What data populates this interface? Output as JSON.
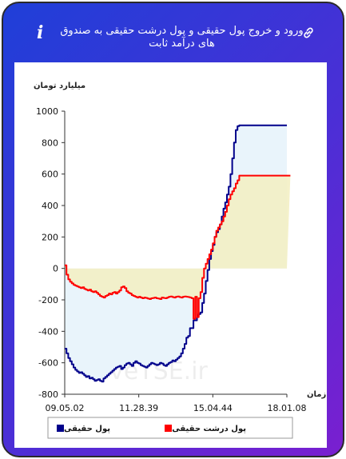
{
  "header": {
    "title": "ورود و خروج پول حقیقی و پول درشت حقیقی به صندوق های درآمد ثابت",
    "info_icon": "info-icon",
    "link_icon": "link-icon"
  },
  "chart_data": {
    "type": "line",
    "ylabel": "میلیارد تومان",
    "xlabel": "زمان",
    "ylim": [
      -800,
      1000
    ],
    "yticks": [
      1000,
      800,
      600,
      400,
      200,
      0,
      -200,
      -400,
      -600,
      -800
    ],
    "xticks": [
      "09.05.02",
      "11.28.39",
      "15.04.44",
      "18.01.08"
    ],
    "watermark": "LiveTSE.ir",
    "series": [
      {
        "name": "پول حقیقی",
        "color": "#00008b",
        "fill": "#e9f4fb",
        "values": [
          -510,
          -540,
          -570,
          -590,
          -610,
          -630,
          -645,
          -655,
          -665,
          -660,
          -670,
          -680,
          -690,
          -685,
          -700,
          -695,
          -705,
          -715,
          -710,
          -705,
          -715,
          -720,
          -700,
          -690,
          -680,
          -670,
          -660,
          -650,
          -640,
          -630,
          -625,
          -620,
          -640,
          -630,
          -615,
          -605,
          -600,
          -610,
          -620,
          -600,
          -590,
          -600,
          -605,
          -615,
          -620,
          -625,
          -630,
          -620,
          -610,
          -600,
          -605,
          -610,
          -615,
          -610,
          -600,
          -605,
          -615,
          -620,
          -610,
          -600,
          -595,
          -585,
          -590,
          -580,
          -570,
          -560,
          -540,
          -510,
          -480,
          -440,
          -430,
          -380,
          -380,
          -330,
          -330,
          -300,
          -290,
          -280,
          -220,
          -160,
          -80,
          -10,
          60,
          110,
          150,
          200,
          230,
          250,
          280,
          330,
          380,
          420,
          470,
          520,
          600,
          700,
          800,
          880,
          905,
          910,
          910,
          910,
          910,
          910,
          910,
          910,
          910,
          910,
          910,
          910,
          910,
          910,
          910,
          910,
          910,
          910,
          910,
          910,
          910,
          910,
          910,
          910,
          910,
          910,
          910,
          910,
          910
        ]
      },
      {
        "name": "پول درشت حقیقی",
        "color": "#ff0000",
        "fill": "#f3efc4",
        "values": [
          20,
          -40,
          -70,
          -85,
          -95,
          -105,
          -110,
          -115,
          -120,
          -125,
          -120,
          -130,
          -135,
          -140,
          -135,
          -145,
          -150,
          -145,
          -155,
          -165,
          -175,
          -180,
          -185,
          -175,
          -170,
          -160,
          -165,
          -155,
          -150,
          -160,
          -150,
          -140,
          -120,
          -115,
          -125,
          -145,
          -155,
          -160,
          -170,
          -175,
          -180,
          -185,
          -180,
          -185,
          -190,
          -185,
          -188,
          -192,
          -195,
          -190,
          -188,
          -185,
          -190,
          -192,
          -195,
          -185,
          -188,
          -190,
          -185,
          -180,
          -178,
          -182,
          -185,
          -180,
          -178,
          -182,
          -185,
          -180,
          -178,
          -180,
          -182,
          -185,
          -190,
          -320,
          -180,
          -310,
          -190,
          -150,
          -60,
          0,
          30,
          60,
          90,
          120,
          160,
          200,
          240,
          260,
          280,
          300,
          330,
          360,
          400,
          440,
          470,
          490,
          510,
          540,
          560,
          590,
          590,
          590,
          590,
          590,
          590,
          590,
          590,
          590,
          590,
          590,
          590,
          590,
          590,
          590,
          590,
          590,
          590,
          590,
          590,
          590,
          590,
          590,
          590,
          590,
          590,
          590,
          590,
          590,
          590
        ]
      }
    ],
    "grid": false,
    "legend_position": "bottom"
  },
  "legend": {
    "items": [
      {
        "label": "پول حقیقی",
        "color": "#00008b"
      },
      {
        "label": "پول درشت حقیقی",
        "color": "#ff0000"
      }
    ]
  }
}
